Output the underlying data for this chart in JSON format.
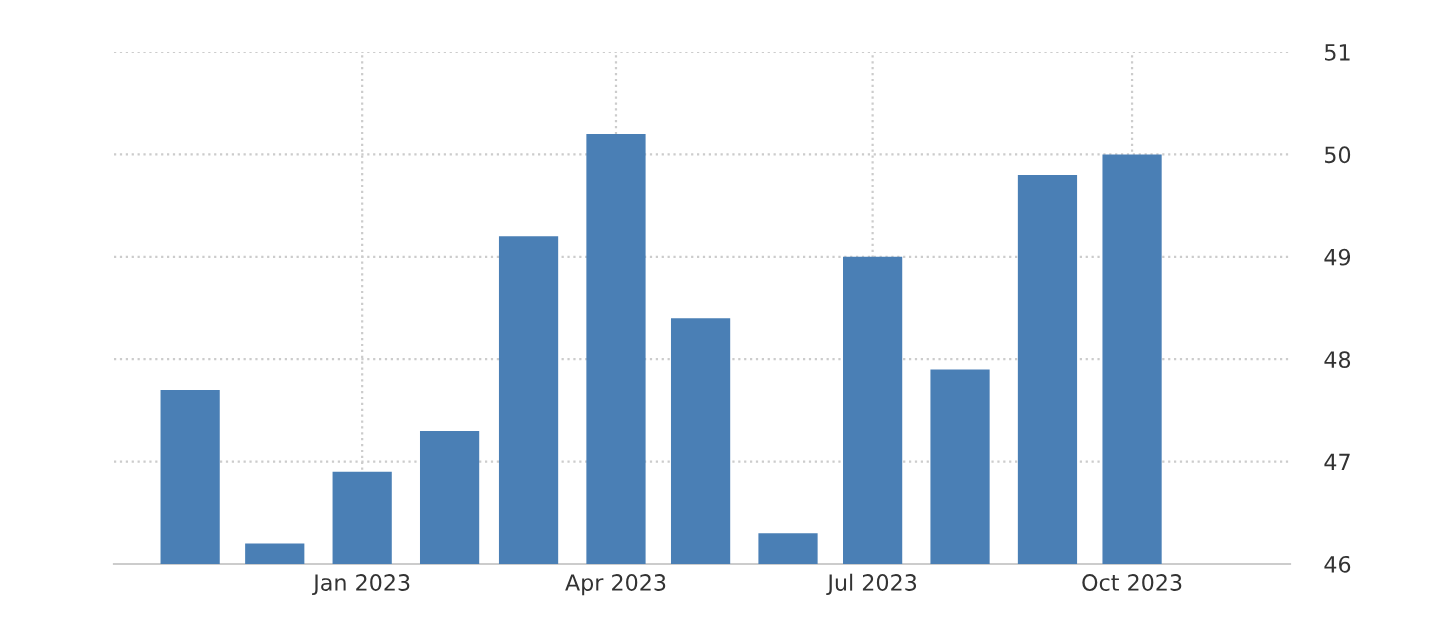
{
  "chart_data": {
    "type": "bar",
    "x": [
      "2022-11",
      "2022-12",
      "2023-01",
      "2023-02",
      "2023-03",
      "2023-04",
      "2023-05",
      "2023-06",
      "2023-07",
      "2023-08",
      "2023-09",
      "2023-10"
    ],
    "values": [
      47.7,
      46.2,
      46.9,
      47.3,
      49.2,
      50.2,
      48.4,
      46.3,
      49.0,
      47.9,
      49.8,
      50.0
    ],
    "color": "#4a7fb5",
    "xlim": [
      "2022-10-05",
      "2023-11-26"
    ],
    "xticks": [
      {
        "value": "2023-01",
        "label": "Jan 2023"
      },
      {
        "value": "2023-04",
        "label": "Apr 2023"
      },
      {
        "value": "2023-07",
        "label": "Jul 2023"
      },
      {
        "value": "2023-10",
        "label": "Oct 2023"
      }
    ],
    "ylim": [
      46,
      51
    ],
    "yticks": [
      46,
      47,
      48,
      49,
      50,
      51
    ],
    "grid": true
  }
}
